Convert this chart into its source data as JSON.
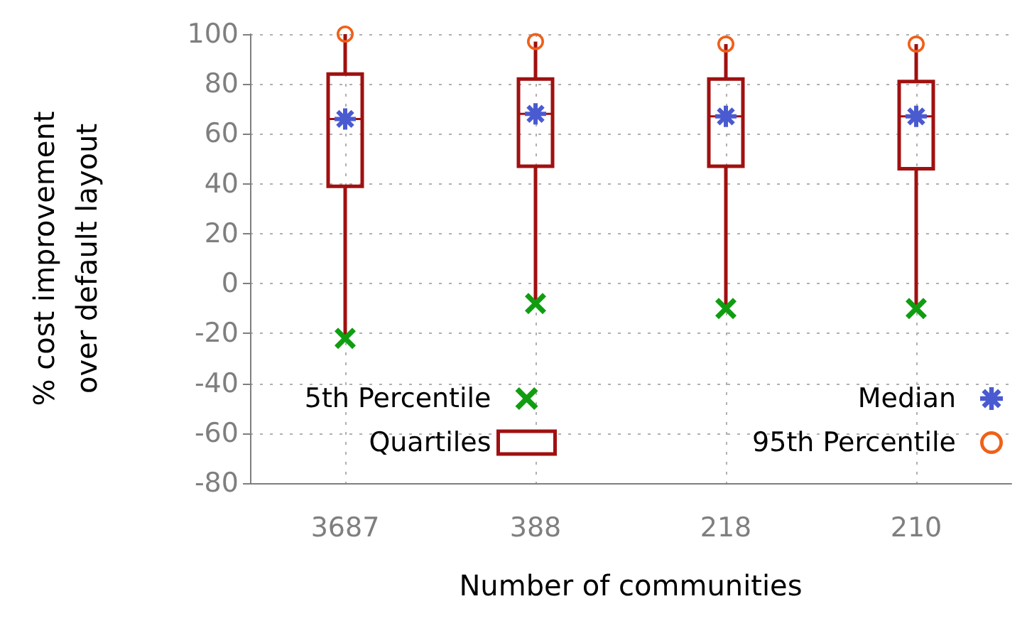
{
  "chart_data": {
    "type": "box",
    "xlabel": "Number of communities",
    "ylabel": "% cost improvement\nover default layout",
    "categories": [
      "3687",
      "388",
      "218",
      "210"
    ],
    "ylim": [
      -80,
      100
    ],
    "yticks": [
      -80,
      -60,
      -40,
      -20,
      0,
      20,
      40,
      60,
      80,
      100
    ],
    "grid": true,
    "legend": "bottom",
    "series": [
      {
        "name": "5th Percentile",
        "type": "scatter",
        "marker": "cross",
        "color": "#109e10",
        "values": [
          -22,
          -8,
          -10,
          -10
        ]
      },
      {
        "name": "Quartiles",
        "color": "#a01010",
        "boxes": [
          {
            "low": -22,
            "q1": 39,
            "median": 66,
            "q3": 84,
            "high": 100
          },
          {
            "low": -8,
            "q1": 47,
            "median": 68,
            "q3": 82,
            "high": 97
          },
          {
            "low": -10,
            "q1": 47,
            "median": 67,
            "q3": 82,
            "high": 96
          },
          {
            "low": -10,
            "q1": 46,
            "median": 67,
            "q3": 81,
            "high": 96
          }
        ]
      },
      {
        "name": "Median",
        "type": "scatter",
        "marker": "star",
        "color": "#4a5ad0",
        "values": [
          66,
          68,
          67,
          67
        ]
      },
      {
        "name": "95th Percentile",
        "type": "scatter",
        "marker": "circle",
        "color": "#f06018",
        "values": [
          100,
          97,
          96,
          96
        ]
      }
    ]
  }
}
